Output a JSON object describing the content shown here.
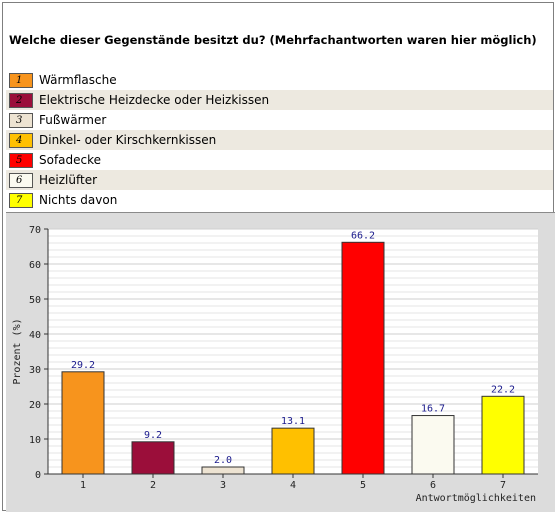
{
  "question": "Welche dieser Gegenstände besitzt du? (Mehrfachantworten waren hier möglich)",
  "legend": [
    {
      "num": "1",
      "label": "Wärmflasche",
      "color": "#f7941d"
    },
    {
      "num": "2",
      "label": "Elektrische Heizdecke oder Heizkissen",
      "color": "#9b0e3a"
    },
    {
      "num": "3",
      "label": "Fußwärmer",
      "color": "#ede3d2"
    },
    {
      "num": "4",
      "label": "Dinkel- oder Kirschkernkissen",
      "color": "#ffc000"
    },
    {
      "num": "5",
      "label": "Sofadecke",
      "color": "#ff0000"
    },
    {
      "num": "6",
      "label": "Heizlüfter",
      "color": "#fbfaf0"
    },
    {
      "num": "7",
      "label": "Nichts davon",
      "color": "#ffff00"
    }
  ],
  "chart_data": {
    "type": "bar",
    "categories": [
      "1",
      "2",
      "3",
      "4",
      "5",
      "6",
      "7"
    ],
    "values": [
      29.2,
      9.2,
      2.0,
      13.1,
      66.2,
      16.7,
      22.2
    ],
    "value_labels": [
      "29.2",
      "9.2",
      "2.0",
      "13.1",
      "66.2",
      "16.7",
      "22.2"
    ],
    "colors": [
      "#f7941d",
      "#9b0e3a",
      "#ede3d2",
      "#ffc000",
      "#ff0000",
      "#fbfaf0",
      "#ffff00"
    ],
    "xlabel": "Antwortmöglichkeiten",
    "ylabel": "Prozent (%)",
    "ylim": [
      0,
      70
    ],
    "yticks": [
      "0",
      "10",
      "20",
      "30",
      "40",
      "50",
      "60",
      "70"
    ],
    "grid": true
  }
}
